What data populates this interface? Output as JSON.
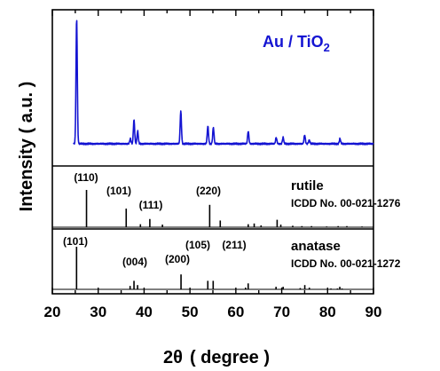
{
  "chart_data": {
    "type": "line",
    "xlabel_symbol": "2θ",
    "xlabel_unit": "( degree )",
    "ylabel": "Intensity ( a.u. )",
    "xlim": [
      20,
      90
    ],
    "x_ticks": [
      "20",
      "30",
      "40",
      "50",
      "60",
      "70",
      "80",
      "90"
    ],
    "colors": {
      "sample": "#1414d2",
      "reference": "#000000"
    },
    "sample": {
      "name_main": "Au / TiO",
      "name_sub": "2",
      "peaks": [
        {
          "x": 25.3,
          "h": 1.0
        },
        {
          "x": 37.0,
          "h": 0.04
        },
        {
          "x": 37.8,
          "h": 0.19
        },
        {
          "x": 38.6,
          "h": 0.1
        },
        {
          "x": 48.0,
          "h": 0.26
        },
        {
          "x": 53.9,
          "h": 0.14
        },
        {
          "x": 55.1,
          "h": 0.13
        },
        {
          "x": 62.7,
          "h": 0.1
        },
        {
          "x": 68.8,
          "h": 0.05
        },
        {
          "x": 70.3,
          "h": 0.05
        },
        {
          "x": 75.0,
          "h": 0.07
        },
        {
          "x": 76.0,
          "h": 0.03
        },
        {
          "x": 82.7,
          "h": 0.04
        }
      ]
    },
    "references": [
      {
        "name": "rutile",
        "card": "ICDD No. 00-021-1276",
        "lines": [
          {
            "x": 27.45,
            "h": 1.0,
            "label": "(110)"
          },
          {
            "x": 36.1,
            "h": 0.5,
            "label": "(101)"
          },
          {
            "x": 39.2,
            "h": 0.08
          },
          {
            "x": 41.25,
            "h": 0.22,
            "label": "(111)"
          },
          {
            "x": 44.0,
            "h": 0.07
          },
          {
            "x": 54.3,
            "h": 0.6,
            "label": "(220)"
          },
          {
            "x": 56.6,
            "h": 0.18
          },
          {
            "x": 62.7,
            "h": 0.08
          },
          {
            "x": 64.0,
            "h": 0.1
          },
          {
            "x": 65.5,
            "h": 0.05
          },
          {
            "x": 69.0,
            "h": 0.2
          },
          {
            "x": 69.8,
            "h": 0.07
          },
          {
            "x": 72.4,
            "h": 0.04
          },
          {
            "x": 74.4,
            "h": 0.03
          },
          {
            "x": 76.5,
            "h": 0.03
          },
          {
            "x": 79.8,
            "h": 0.02
          },
          {
            "x": 82.3,
            "h": 0.03
          },
          {
            "x": 84.2,
            "h": 0.03
          },
          {
            "x": 87.5,
            "h": 0.02
          }
        ]
      },
      {
        "name": "anatase",
        "card": "ICDD No. 00-021-1272",
        "lines": [
          {
            "x": 25.28,
            "h": 1.0,
            "label": "(101)"
          },
          {
            "x": 36.95,
            "h": 0.08
          },
          {
            "x": 37.8,
            "h": 0.2,
            "label": "(004)"
          },
          {
            "x": 38.58,
            "h": 0.1
          },
          {
            "x": 48.05,
            "h": 0.35,
            "label": "(200)"
          },
          {
            "x": 53.89,
            "h": 0.2,
            "label": "(105)"
          },
          {
            "x": 55.06,
            "h": 0.2,
            "label": "(211)"
          },
          {
            "x": 62.12,
            "h": 0.04
          },
          {
            "x": 62.69,
            "h": 0.14
          },
          {
            "x": 68.76,
            "h": 0.06
          },
          {
            "x": 70.31,
            "h": 0.06
          },
          {
            "x": 74.03,
            "h": 0.03
          },
          {
            "x": 75.03,
            "h": 0.1
          },
          {
            "x": 76.02,
            "h": 0.04
          },
          {
            "x": 80.73,
            "h": 0.02
          },
          {
            "x": 82.14,
            "h": 0.02
          },
          {
            "x": 82.66,
            "h": 0.06
          },
          {
            "x": 83.15,
            "h": 0.02
          }
        ]
      }
    ]
  }
}
